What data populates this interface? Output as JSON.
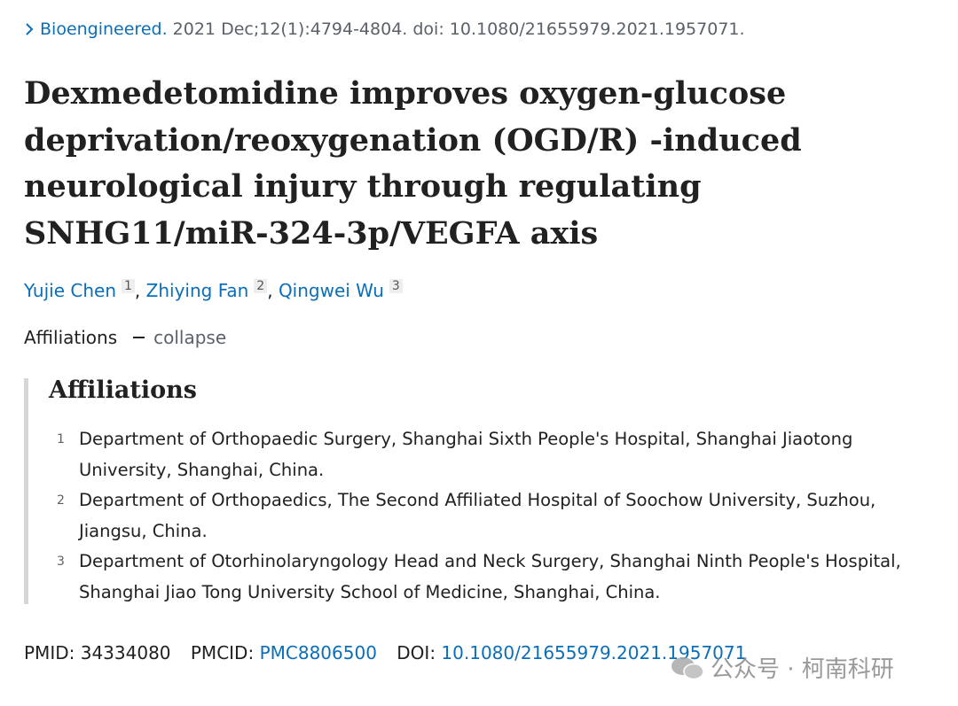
{
  "citation": {
    "journal": "Bioengineered.",
    "details": "2021 Dec;12(1):4794-4804. doi: 10.1080/21655979.2021.1957071."
  },
  "title": "Dexmedetomidine improves oxygen-glucose deprivation/reoxygenation (OGD/R) -induced neurological injury through regulating SNHG11/miR-324-3p/VEGFA axis",
  "authors": [
    {
      "name": "Yujie Chen",
      "affiliation": "1",
      "separator": ","
    },
    {
      "name": "Zhiying Fan",
      "affiliation": "2",
      "separator": ","
    },
    {
      "name": "Qingwei Wu",
      "affiliation": "3"
    }
  ],
  "affiliations_toggle": {
    "label": "Affiliations",
    "action": "collapse"
  },
  "affiliations": {
    "heading": "Affiliations",
    "items": [
      {
        "number": "1",
        "text": "Department of Orthopaedic Surgery, Shanghai Sixth People's Hospital, Shanghai Jiaotong University, Shanghai, China."
      },
      {
        "number": "2",
        "text": "Department of Orthopaedics, The Second Affiliated Hospital of Soochow University, Suzhou, Jiangsu, China."
      },
      {
        "number": "3",
        "text": "Department of Otorhinolaryngology Head and Neck Surgery, Shanghai Ninth People's Hospital, Shanghai Jiao Tong University School of Medicine, Shanghai, China."
      }
    ]
  },
  "identifiers": {
    "pmid_label": "PMID:",
    "pmid": "34334080",
    "pmcid_label": "PMCID:",
    "pmcid": "PMC8806500",
    "doi_label": "DOI:",
    "doi": "10.1080/21655979.2021.1957071"
  },
  "watermark": "公众号 · 柯南科研"
}
